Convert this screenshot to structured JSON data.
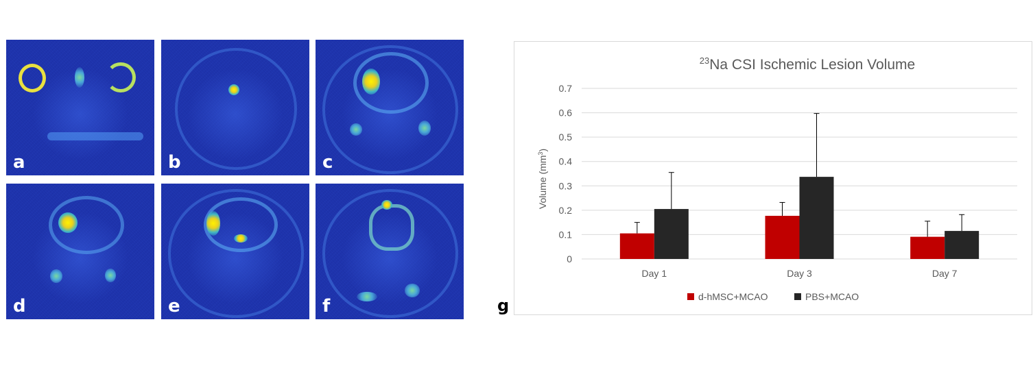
{
  "panels": [
    {
      "label": "a"
    },
    {
      "label": "b"
    },
    {
      "label": "c"
    },
    {
      "label": "d"
    },
    {
      "label": "e"
    },
    {
      "label": "f"
    }
  ],
  "chart_panel_label": "g",
  "chart_data": {
    "type": "bar",
    "title_sup": "23",
    "title_main": "Na CSI Ischemic Lesion Volume",
    "title": "23Na CSI Ischemic Lesion Volume",
    "ylabel_main": "Volume (mm",
    "ylabel_sup": "3",
    "ylabel_end": ")",
    "ylabel": "Volume (mm3)",
    "categories": [
      "Day 1",
      "Day 3",
      "Day 7"
    ],
    "ylim": [
      0,
      0.7
    ],
    "yticks": [
      "0",
      "0.1",
      "0.2",
      "0.3",
      "0.4",
      "0.5",
      "0.6",
      "0.7"
    ],
    "grid": true,
    "legend_position": "bottom",
    "series": [
      {
        "name": "d-hMSC+MCAO",
        "color": "#c00000",
        "values": [
          0.105,
          0.177,
          0.091
        ],
        "errors": [
          0.045,
          0.055,
          0.064
        ]
      },
      {
        "name": "PBS+MCAO",
        "color": "#262626",
        "values": [
          0.205,
          0.337,
          0.115
        ],
        "errors": [
          0.15,
          0.26,
          0.067
        ]
      }
    ]
  }
}
